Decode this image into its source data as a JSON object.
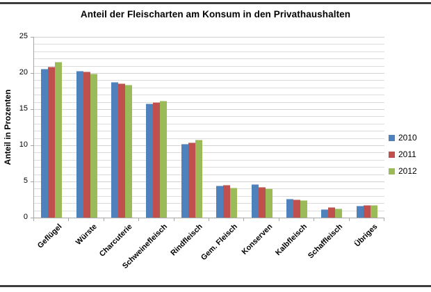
{
  "chart_data": {
    "type": "bar",
    "title": "Anteil der Fleischarten am Konsum in den Privathaushalten",
    "ylabel": "Anteil in Prozenten",
    "xlabel": "",
    "ylim": [
      0,
      25
    ],
    "yticks": [
      0,
      5,
      10,
      15,
      20,
      25
    ],
    "minor_gridline_unit": 1,
    "grid": true,
    "legend_position": "right",
    "categories": [
      "Geflügel",
      "Würste",
      "Charcuterie",
      "Schweinefleisch",
      "Rindfleisch",
      "Gem. Fleisch",
      "Konserven",
      "Kalbfleisch",
      "Schaffleisch",
      "Übriges"
    ],
    "series": [
      {
        "name": "2010",
        "color": "#4f81bd",
        "values": [
          20.5,
          20.2,
          18.7,
          15.7,
          10.1,
          4.3,
          4.5,
          2.5,
          1.1,
          1.5
        ]
      },
      {
        "name": "2011",
        "color": "#c0504d",
        "values": [
          20.8,
          20.1,
          18.5,
          15.9,
          10.3,
          4.4,
          4.1,
          2.4,
          1.3,
          1.6
        ]
      },
      {
        "name": "2012",
        "color": "#9bbb59",
        "values": [
          21.4,
          19.8,
          18.3,
          16.1,
          10.7,
          4.0,
          3.9,
          2.3,
          1.2,
          1.6
        ]
      }
    ]
  },
  "frame": {
    "rule_color": "#3e3e3e"
  }
}
